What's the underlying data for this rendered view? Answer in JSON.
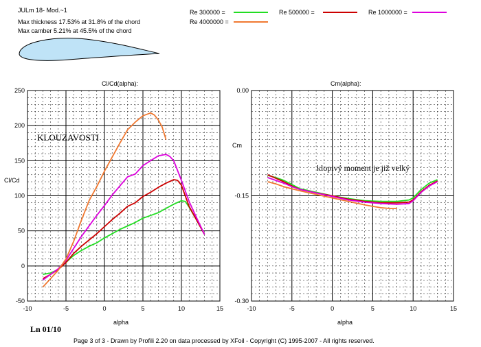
{
  "header": {
    "airfoil_name": "JULm 18- Mod.~1",
    "max_thickness": "Max thickness 17.53% at 31.8% of the chord",
    "max_camber": "Max camber 5.21% at 45.5% of the chord"
  },
  "legend": [
    {
      "label": "Re 300000 =",
      "color": "#22dd22"
    },
    {
      "label": "Re 500000 =",
      "color": "#cc0000"
    },
    {
      "label": "Re 1000000 =",
      "color": "#dd00dd"
    },
    {
      "label": "Re 4000000 =",
      "color": "#f07830"
    }
  ],
  "footer": {
    "ln": "Ln 01/10",
    "credits": "Page 3 of 3   -   Drawn by Profili 2.20 on data processed by  XFoil - Copyright (C) 1995-2007 - All rights reserved."
  },
  "chart_data": [
    {
      "type": "line",
      "title": "Cl/Cd(alpha):",
      "xlabel": "alpha",
      "ylabel": "Cl/Cd",
      "annotation": "KLOUZAVOSTI",
      "xlim": [
        -10,
        15
      ],
      "ylim": [
        -50,
        250
      ],
      "xticks": [
        -10,
        -5,
        0,
        5,
        10,
        15
      ],
      "yticks": [
        -50,
        0,
        50,
        100,
        150,
        200,
        250
      ],
      "grid": true,
      "series": [
        {
          "name": "Re 300000",
          "color": "#22dd22",
          "x": [
            -8,
            -7,
            -6,
            -5,
            -4,
            -3,
            -2,
            -1,
            0,
            1,
            2,
            3,
            4,
            5,
            6,
            7,
            8,
            9,
            10,
            10.5,
            11,
            12,
            13
          ],
          "y": [
            -12,
            -10,
            -5,
            5,
            15,
            22,
            28,
            33,
            40,
            46,
            52,
            57,
            62,
            68,
            72,
            76,
            82,
            88,
            93,
            92,
            84,
            65,
            45
          ]
        },
        {
          "name": "Re 500000",
          "color": "#cc0000",
          "x": [
            -8,
            -7,
            -6,
            -5,
            -4,
            -3,
            -2,
            -1,
            0,
            1,
            2,
            3,
            4,
            5,
            6,
            7,
            8,
            9,
            9.5,
            10,
            11,
            12,
            13
          ],
          "y": [
            -18,
            -12,
            -5,
            5,
            18,
            28,
            37,
            46,
            56,
            66,
            75,
            85,
            90,
            99,
            105,
            112,
            118,
            123,
            122,
            115,
            85,
            65,
            45
          ]
        },
        {
          "name": "Re 1000000",
          "color": "#dd00dd",
          "x": [
            -8,
            -7,
            -6,
            -5,
            -4,
            -3,
            -2,
            -1,
            0,
            1,
            2,
            3,
            4,
            5,
            6,
            7,
            8,
            8.5,
            9,
            10,
            11,
            12,
            13
          ],
          "y": [
            -20,
            -12,
            -4,
            8,
            25,
            42,
            57,
            72,
            86,
            101,
            114,
            127,
            131,
            143,
            150,
            157,
            159,
            156,
            150,
            122,
            92,
            68,
            45
          ]
        },
        {
          "name": "Re 4000000",
          "color": "#f07830",
          "x": [
            -8,
            -7,
            -6,
            -5,
            -4,
            -3,
            -2,
            -1,
            0,
            1,
            2,
            3,
            4,
            5,
            6,
            6.5,
            7,
            7.5,
            8
          ],
          "y": [
            -30,
            -18,
            -6,
            10,
            35,
            65,
            93,
            113,
            135,
            155,
            175,
            194,
            205,
            214,
            218,
            215,
            208,
            198,
            180
          ]
        }
      ]
    },
    {
      "type": "line",
      "title": "Cm(alpha):",
      "xlabel": "alpha",
      "ylabel": "Cm",
      "annotation": "klopivý moment je již velký",
      "xlim": [
        -10,
        15
      ],
      "ylim": [
        -0.3,
        0.0
      ],
      "xticks": [
        -10,
        -5,
        0,
        5,
        10,
        15
      ],
      "yticks": [
        0.0,
        -0.15,
        -0.3
      ],
      "ytick_labels": [
        "0.00",
        "-0.15",
        "-0.30"
      ],
      "grid": true,
      "series": [
        {
          "name": "Re 300000",
          "color": "#22dd22",
          "x": [
            -8,
            -7,
            -6,
            -5,
            -4,
            -2,
            0,
            2,
            4,
            6,
            8,
            9.5,
            10,
            11,
            12,
            13
          ],
          "y": [
            -0.121,
            -0.124,
            -0.128,
            -0.134,
            -0.14,
            -0.145,
            -0.15,
            -0.154,
            -0.157,
            -0.158,
            -0.158,
            -0.156,
            -0.153,
            -0.141,
            -0.132,
            -0.127
          ]
        },
        {
          "name": "Re 500000",
          "color": "#cc0000",
          "x": [
            -8,
            -7,
            -6,
            -5,
            -4,
            -2,
            0,
            2,
            4,
            6,
            8,
            9.5,
            10,
            11,
            12,
            13
          ],
          "y": [
            -0.12,
            -0.125,
            -0.13,
            -0.136,
            -0.141,
            -0.146,
            -0.15,
            -0.155,
            -0.158,
            -0.16,
            -0.16,
            -0.159,
            -0.156,
            -0.144,
            -0.135,
            -0.129
          ]
        },
        {
          "name": "Re 1000000",
          "color": "#dd00dd",
          "x": [
            -8,
            -7,
            -6,
            -5,
            -4,
            -2,
            0,
            2,
            4,
            6,
            8,
            9.5,
            10,
            11,
            12,
            13
          ],
          "y": [
            -0.124,
            -0.128,
            -0.132,
            -0.137,
            -0.141,
            -0.146,
            -0.151,
            -0.156,
            -0.159,
            -0.161,
            -0.162,
            -0.161,
            -0.157,
            -0.145,
            -0.136,
            -0.13
          ]
        },
        {
          "name": "Re 4000000",
          "color": "#f07830",
          "x": [
            -8,
            -7,
            -6,
            -5,
            -4,
            -2,
            0,
            2,
            4,
            5,
            6,
            7,
            8
          ],
          "y": [
            -0.13,
            -0.133,
            -0.137,
            -0.14,
            -0.143,
            -0.148,
            -0.153,
            -0.158,
            -0.163,
            -0.165,
            -0.167,
            -0.168,
            -0.168
          ]
        }
      ]
    }
  ]
}
